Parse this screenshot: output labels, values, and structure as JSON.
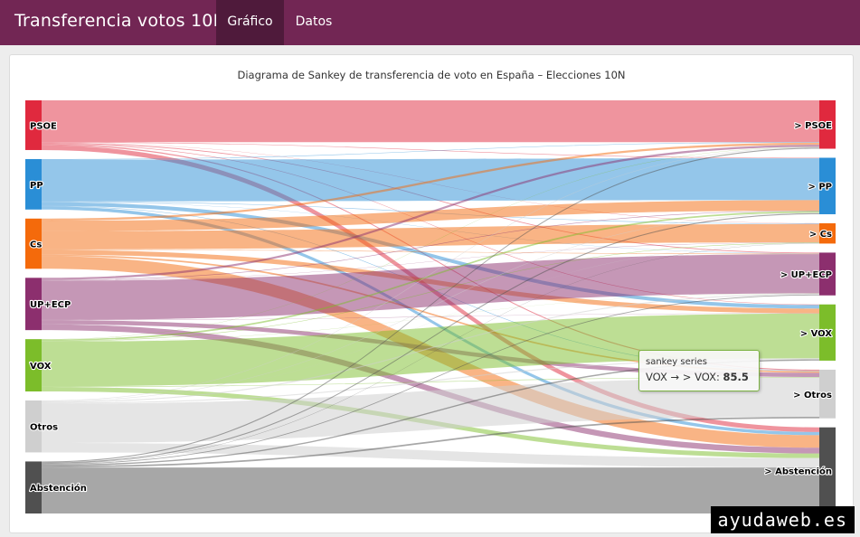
{
  "header": {
    "title": "Transferencia votos 10N",
    "tabs": [
      {
        "label": "Gráfico",
        "active": true
      },
      {
        "label": "Datos",
        "active": false
      }
    ]
  },
  "colors": {
    "topbar": "#722654",
    "tab_active": "#4f1a3b",
    "PSOE": "#e0293e",
    "PP": "#2a8ed6",
    "Cs": "#f46a0b",
    "UP+ECP": "#8c2f6e",
    "VOX": "#7cbd2a",
    "Otros": "#cfcfcf",
    "Abstención": "#505050"
  },
  "tooltip": {
    "series": "sankey series",
    "link": "VOX → > VOX:",
    "value": "85.5"
  },
  "watermark": "ayudaweb.es",
  "chart_data": {
    "type": "sankey",
    "title": "Diagrama de Sankey de transferencia de voto en España – Elecciones 10N",
    "source_nodes": [
      "PSOE",
      "PP",
      "Cs",
      "UP+ECP",
      "VOX",
      "Otros",
      "Abstención"
    ],
    "target_nodes": [
      "> PSOE",
      "> PP",
      "> Cs",
      "> UP+ECP",
      "> VOX",
      "> Otros",
      "> Abstención"
    ],
    "links": [
      {
        "from": "PSOE",
        "to": "> PSOE",
        "value": 80
      },
      {
        "from": "PSOE",
        "to": "> PP",
        "value": 1
      },
      {
        "from": "PSOE",
        "to": "> Cs",
        "value": 0.5
      },
      {
        "from": "PSOE",
        "to": "> UP+ECP",
        "value": 1.5
      },
      {
        "from": "PSOE",
        "to": "> VOX",
        "value": 1
      },
      {
        "from": "PSOE",
        "to": "> Otros",
        "value": 2
      },
      {
        "from": "PSOE",
        "to": "> Abstención",
        "value": 9
      },
      {
        "from": "PP",
        "to": "> PSOE",
        "value": 1
      },
      {
        "from": "PP",
        "to": "> PP",
        "value": 80
      },
      {
        "from": "PP",
        "to": "> Cs",
        "value": 1
      },
      {
        "from": "PP",
        "to": "> UP+ECP",
        "value": 0.5
      },
      {
        "from": "PP",
        "to": "> VOX",
        "value": 7
      },
      {
        "from": "PP",
        "to": "> Otros",
        "value": 1
      },
      {
        "from": "PP",
        "to": "> Abstención",
        "value": 6
      },
      {
        "from": "Cs",
        "to": "> PSOE",
        "value": 4
      },
      {
        "from": "Cs",
        "to": "> PP",
        "value": 20
      },
      {
        "from": "Cs",
        "to": "> Cs",
        "value": 35
      },
      {
        "from": "Cs",
        "to": "> UP+ECP",
        "value": 1
      },
      {
        "from": "Cs",
        "to": "> VOX",
        "value": 9
      },
      {
        "from": "Cs",
        "to": "> Otros",
        "value": 3
      },
      {
        "from": "Cs",
        "to": "> Abstención",
        "value": 24
      },
      {
        "from": "UP+ECP",
        "to": "> PSOE",
        "value": 4
      },
      {
        "from": "UP+ECP",
        "to": "> PP",
        "value": 1
      },
      {
        "from": "UP+ECP",
        "to": "> Cs",
        "value": 0.5
      },
      {
        "from": "UP+ECP",
        "to": "> UP+ECP",
        "value": 75
      },
      {
        "from": "UP+ECP",
        "to": "> VOX",
        "value": 0.5
      },
      {
        "from": "UP+ECP",
        "to": "> Otros",
        "value": 8
      },
      {
        "from": "UP+ECP",
        "to": "> Abstención",
        "value": 11
      },
      {
        "from": "VOX",
        "to": "> PSOE",
        "value": 0.5
      },
      {
        "from": "VOX",
        "to": "> PP",
        "value": 3
      },
      {
        "from": "VOX",
        "to": "> Cs",
        "value": 1
      },
      {
        "from": "VOX",
        "to": "> UP+ECP",
        "value": 0.3
      },
      {
        "from": "VOX",
        "to": "> VOX",
        "value": 85.5
      },
      {
        "from": "VOX",
        "to": "> Otros",
        "value": 1
      },
      {
        "from": "VOX",
        "to": "> Abstención",
        "value": 8.7
      },
      {
        "from": "Otros",
        "to": "> PSOE",
        "value": 1
      },
      {
        "from": "Otros",
        "to": "> PP",
        "value": 1
      },
      {
        "from": "Otros",
        "to": "> Cs",
        "value": 0.3
      },
      {
        "from": "Otros",
        "to": "> UP+ECP",
        "value": 2
      },
      {
        "from": "Otros",
        "to": "> VOX",
        "value": 2
      },
      {
        "from": "Otros",
        "to": "> Otros",
        "value": 75
      },
      {
        "from": "Otros",
        "to": "> Abstención",
        "value": 18
      },
      {
        "from": "Abstención",
        "to": "> PSOE",
        "value": 2
      },
      {
        "from": "Abstención",
        "to": "> PP",
        "value": 2
      },
      {
        "from": "Abstención",
        "to": "> Cs",
        "value": 0.5
      },
      {
        "from": "Abstención",
        "to": "> UP+ECP",
        "value": 1.5
      },
      {
        "from": "Abstención",
        "to": "> VOX",
        "value": 2.5
      },
      {
        "from": "Abstención",
        "to": "> Otros",
        "value": 3
      },
      {
        "from": "Abstención",
        "to": "> Abstención",
        "value": 88
      }
    ]
  }
}
